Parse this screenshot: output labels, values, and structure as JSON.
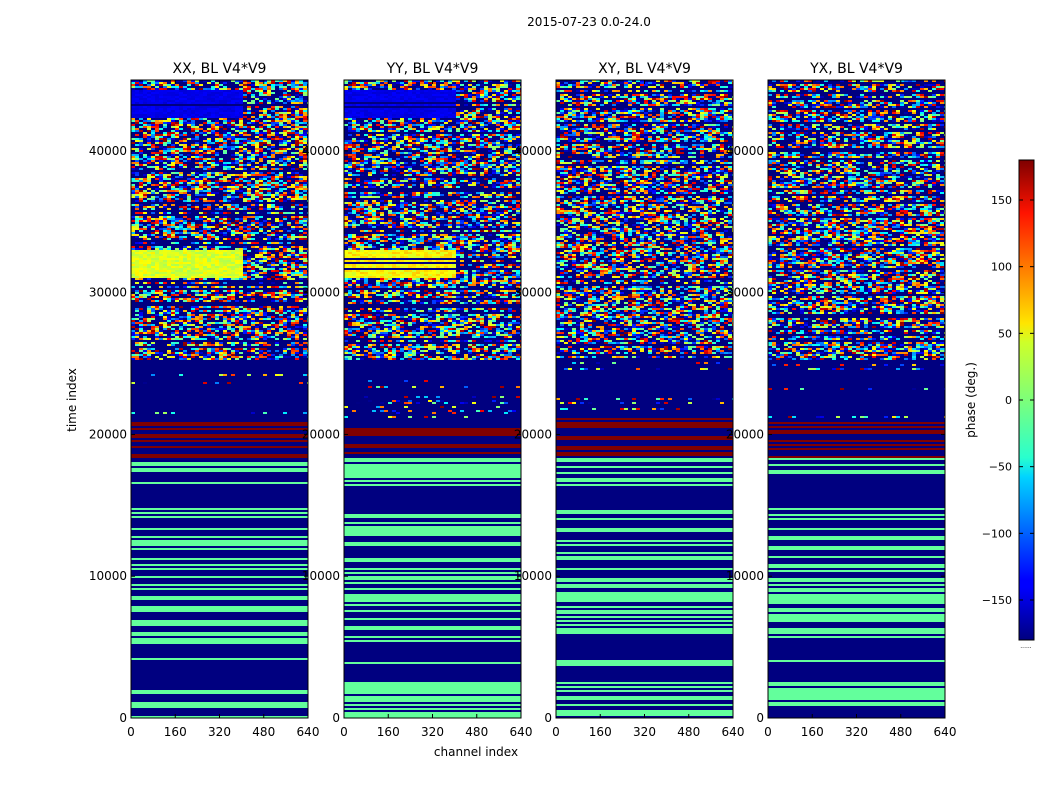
{
  "chart_data": {
    "type": "heatmap",
    "suptitle": "2015-07-23 0.0-24.0",
    "xlabel": "channel index",
    "ylabel": "time index",
    "x_ticks": [
      0,
      160,
      320,
      480,
      640
    ],
    "y_ticks": [
      0,
      10000,
      20000,
      30000,
      40000
    ],
    "xlim": [
      0,
      640
    ],
    "ylim": [
      0,
      45000
    ],
    "colorbar": {
      "label": "phase (deg.)",
      "ticks": [
        150,
        100,
        50,
        0,
        -50,
        -100,
        -150
      ],
      "range": [
        -180,
        180
      ],
      "colormap": "jet",
      "footer": "......"
    },
    "panels": [
      {
        "title": "XX, BL V4*V9",
        "variant": "parallel",
        "seed": 11,
        "band_bias": 0
      },
      {
        "title": "YY, BL V4*V9",
        "variant": "parallel",
        "seed": 23,
        "band_bias": 15
      },
      {
        "title": "XY, BL V4*V9",
        "variant": "cross",
        "seed": 37,
        "band_bias": 0
      },
      {
        "title": "YX, BL V4*V9",
        "variant": "cross",
        "seed": 53,
        "band_bias": 0
      }
    ],
    "structure": {
      "description_bands": [
        {
          "t0": 0,
          "t1": 14800,
          "pattern": "green-navy stripes"
        },
        {
          "t0": 14800,
          "t1": 16400,
          "pattern": "navy"
        },
        {
          "t0": 16400,
          "t1": 18400,
          "pattern": "green-navy stripes"
        },
        {
          "t0": 18400,
          "t1": 21100,
          "pattern": "red-navy bands"
        },
        {
          "t0": 21100,
          "t1": 25300,
          "pattern": "navy with sparse noise"
        },
        {
          "t0": 25300,
          "t1": 45000,
          "pattern": "noisy phase"
        }
      ]
    }
  }
}
